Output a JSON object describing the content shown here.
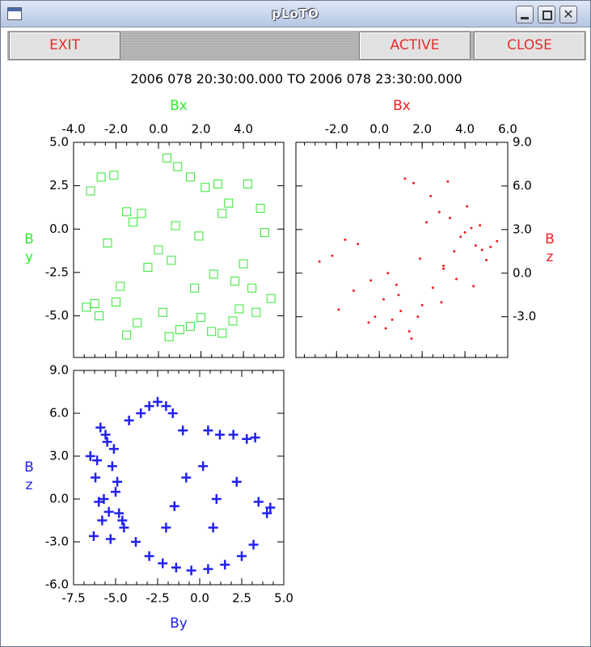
{
  "window": {
    "title": "pLoTO",
    "buttons": [
      "EXIT",
      "ACTIVE",
      "CLOSE"
    ],
    "time_range": "2006 078 20:30:00.000 TO 2006 078 23:30:00.000"
  },
  "chart_data": [
    {
      "type": "scatter",
      "marker": "square",
      "color": "#33e833",
      "xlabel": "Bx",
      "ylabel": "B\ny",
      "xaxis_position": "top",
      "yaxis_position": "left",
      "xlim": [
        -4.0,
        5.9
      ],
      "ylim": [
        -7.4,
        5.0
      ],
      "xticks": [
        {
          "value": -4,
          "label": "-4.0"
        },
        {
          "value": -2,
          "label": "-2.0"
        },
        {
          "value": 0,
          "label": "0.0"
        },
        {
          "value": 2,
          "label": "2.0"
        },
        {
          "value": 4,
          "label": "4.0"
        }
      ],
      "yticks": [
        {
          "value": 5,
          "label": "5.0"
        },
        2.5,
        {
          "value": 0,
          "label": "0.0"
        },
        -2.5,
        {
          "value": -5,
          "label": "-5.0"
        }
      ],
      "x": [
        -3.2,
        -2.7,
        -2.1,
        -1.5,
        -0.8,
        0.4,
        0.9,
        1.5,
        2.2,
        2.8,
        3.3,
        4.2,
        4.8,
        -2.4,
        -1.2,
        0.0,
        0.8,
        1.9,
        3.0,
        4.0,
        5.0,
        -3.0,
        -1.8,
        -0.5,
        0.6,
        1.7,
        2.6,
        3.6,
        4.4,
        -3.4,
        -2.8,
        -2.0,
        -1.0,
        0.2,
        1.0,
        2.0,
        3.0,
        3.8,
        4.6,
        5.3,
        -1.5,
        0.5,
        1.5,
        2.5,
        3.5
      ],
      "y": [
        2.2,
        3.0,
        3.1,
        1.0,
        0.9,
        4.1,
        3.6,
        3.0,
        2.4,
        2.6,
        1.5,
        2.6,
        1.2,
        -0.8,
        0.4,
        -1.2,
        0.2,
        -0.4,
        0.9,
        -2.0,
        -0.2,
        -4.3,
        -3.3,
        -2.2,
        -1.8,
        -3.4,
        -2.6,
        -3.0,
        -3.4,
        -4.5,
        -5.0,
        -4.2,
        -5.4,
        -4.8,
        -5.8,
        -5.1,
        -6.0,
        -4.6,
        -4.8,
        -4.0,
        -6.1,
        -6.2,
        -5.6,
        -5.9,
        -5.3
      ]
    },
    {
      "type": "scatter",
      "marker": "dot",
      "color": "#f02020",
      "xlabel": "Bx",
      "ylabel": "B\nz",
      "xaxis_position": "top",
      "yaxis_position": "right",
      "xlim": [
        -3.9,
        6.0
      ],
      "ylim": [
        -5.8,
        9.0
      ],
      "xticks": [
        {
          "value": -2,
          "label": "-2.0"
        },
        {
          "value": 0,
          "label": "0.0"
        },
        {
          "value": 2,
          "label": "2.0"
        },
        {
          "value": 4,
          "label": "4.0"
        },
        {
          "value": 6,
          "label": "6.0"
        }
      ],
      "yticks": [
        {
          "value": 9,
          "label": "9.0"
        },
        {
          "value": 6,
          "label": "6.0"
        },
        {
          "value": 3,
          "label": "3.0"
        },
        {
          "value": 0,
          "label": "0.0"
        },
        {
          "value": -3,
          "label": "-3.0"
        }
      ],
      "x": [
        -2.8,
        -2.2,
        -1.6,
        -1.0,
        -0.4,
        0.2,
        0.6,
        1.0,
        1.4,
        1.8,
        -1.9,
        -1.2,
        -0.5,
        0.3,
        0.9,
        1.5,
        2.0,
        2.5,
        3.0,
        3.5,
        4.0,
        4.5,
        5.0,
        5.5,
        2.2,
        2.8,
        3.3,
        3.8,
        4.3,
        4.8,
        5.2,
        3.0,
        3.6,
        4.1,
        4.7,
        1.2,
        1.6,
        2.4,
        0.8,
        3.2,
        -0.2,
        0.4,
        2.9,
        1.9,
        4.4
      ],
      "y": [
        0.8,
        1.2,
        2.3,
        2.0,
        -0.5,
        -1.8,
        -3.2,
        -2.6,
        -4.0,
        -3.0,
        -2.5,
        -1.2,
        -3.4,
        -3.8,
        -1.5,
        -4.5,
        -2.2,
        -1.0,
        0.5,
        1.5,
        2.8,
        1.9,
        0.9,
        2.2,
        3.5,
        4.2,
        3.8,
        2.5,
        3.1,
        1.6,
        1.8,
        0.3,
        -0.4,
        4.6,
        3.3,
        6.5,
        6.2,
        5.3,
        -0.8,
        6.3,
        -3.0,
        0.0,
        -2.0,
        1.0,
        -0.9
      ]
    },
    {
      "type": "scatter",
      "marker": "plus",
      "color": "#2222ee",
      "xlabel": "By",
      "ylabel": "B\nz",
      "xaxis_position": "bottom",
      "yaxis_position": "left",
      "xlim": [
        -7.5,
        5.0
      ],
      "ylim": [
        -6.0,
        9.0
      ],
      "xticks": [
        -7.5,
        {
          "value": -5,
          "label": "-5.0"
        },
        -2.5,
        {
          "value": 0,
          "label": "0.0"
        },
        2.5,
        {
          "value": 5,
          "label": "5.0"
        }
      ],
      "yticks": [
        {
          "value": 9,
          "label": "9.0"
        },
        {
          "value": 6,
          "label": "6.0"
        },
        {
          "value": 3,
          "label": "3.0"
        },
        {
          "value": 0,
          "label": "0.0"
        },
        {
          "value": -3,
          "label": "-3.0"
        },
        {
          "value": -6,
          "label": "-6.0"
        }
      ],
      "x": [
        -6.5,
        -6.2,
        -6.0,
        -5.8,
        -5.5,
        -5.2,
        -5.0,
        -4.8,
        -4.5,
        -6.3,
        -5.9,
        -5.6,
        -5.3,
        -4.9,
        -6.1,
        -5.7,
        -5.4,
        -5.1,
        -4.6,
        -4.2,
        -3.5,
        -3.0,
        -2.5,
        -2.0,
        -1.6,
        -1.0,
        0.5,
        1.2,
        2.0,
        2.8,
        3.3,
        -3.8,
        -3.0,
        -2.2,
        -1.4,
        -0.5,
        0.5,
        1.5,
        2.5,
        3.2,
        4.0,
        -0.8,
        0.2,
        1.0,
        -2.0,
        -1.5,
        3.5,
        4.2,
        2.2,
        0.8
      ],
      "y": [
        3.0,
        1.5,
        -0.2,
        -1.5,
        4.0,
        2.3,
        0.5,
        -1.0,
        -2.0,
        -2.6,
        5.0,
        4.5,
        -2.8,
        1.2,
        2.7,
        0.0,
        -0.9,
        3.5,
        -1.5,
        5.5,
        6.0,
        6.5,
        6.8,
        6.5,
        6.0,
        4.8,
        4.8,
        4.5,
        4.5,
        4.2,
        4.3,
        -3.0,
        -4.0,
        -4.5,
        -4.8,
        -5.0,
        -4.9,
        -4.6,
        -4.0,
        -3.2,
        -1.0,
        1.5,
        2.3,
        0.0,
        -2.0,
        -0.5,
        -0.2,
        -0.6,
        1.2,
        -2.0
      ]
    }
  ]
}
